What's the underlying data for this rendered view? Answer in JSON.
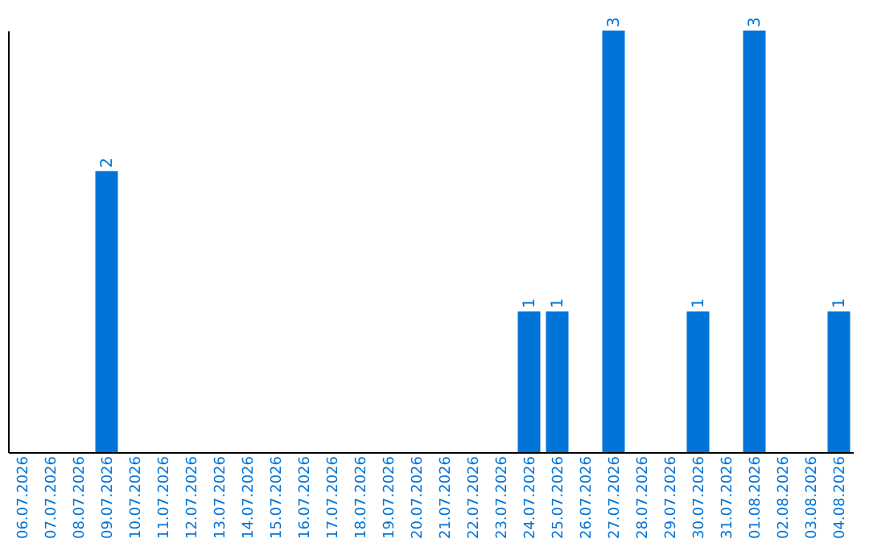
{
  "chart_data": {
    "type": "bar",
    "categories": [
      "06.07.2026",
      "07.07.2026",
      "08.07.2026",
      "09.07.2026",
      "10.07.2026",
      "11.07.2026",
      "12.07.2026",
      "13.07.2026",
      "14.07.2026",
      "15.07.2026",
      "16.07.2026",
      "17.07.2026",
      "18.07.2026",
      "19.07.2026",
      "20.07.2026",
      "21.07.2026",
      "22.07.2026",
      "23.07.2026",
      "24.07.2026",
      "25.07.2026",
      "26.07.2026",
      "27.07.2026",
      "28.07.2026",
      "29.07.2026",
      "30.07.2026",
      "31.07.2026",
      "01.08.2026",
      "02.08.2026",
      "03.08.2026",
      "04.08.2026"
    ],
    "values": [
      0,
      0,
      0,
      2,
      0,
      0,
      0,
      0,
      0,
      0,
      0,
      0,
      0,
      0,
      0,
      0,
      0,
      0,
      1,
      1,
      0,
      3,
      0,
      0,
      1,
      0,
      3,
      0,
      0,
      1
    ],
    "value_labels": [
      null,
      null,
      null,
      "2",
      null,
      null,
      null,
      null,
      null,
      null,
      null,
      null,
      null,
      null,
      null,
      null,
      null,
      null,
      "1",
      "1",
      null,
      "3",
      null,
      null,
      "1",
      null,
      "3",
      null,
      null,
      "1"
    ],
    "color": "#0074d9",
    "ylim": [
      0,
      3
    ],
    "tick_labels": "x",
    "grid": false
  }
}
